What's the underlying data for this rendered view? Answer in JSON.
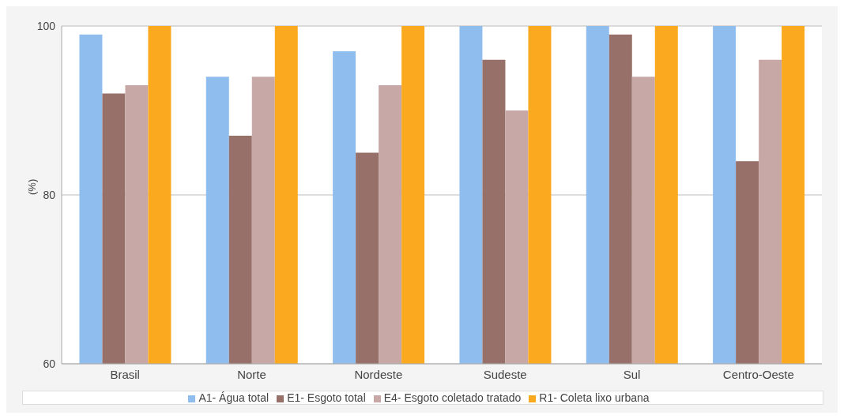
{
  "chart_data": {
    "type": "bar",
    "ylabel": "(%)",
    "categories": [
      "Brasil",
      "Norte",
      "Nordeste",
      "Sudeste",
      "Sul",
      "Centro-Oeste"
    ],
    "series": [
      {
        "name": "A1- Água total",
        "color": "#8fbdee",
        "values": [
          99,
          94,
          97,
          100,
          100,
          100
        ]
      },
      {
        "name": "E1- Esgoto total",
        "color": "#98706a",
        "values": [
          92,
          87,
          85,
          96,
          99,
          84
        ]
      },
      {
        "name": "E4- Esgoto coletado tratado",
        "color": "#c8a8a6",
        "values": [
          93,
          94,
          93,
          90,
          94,
          96
        ]
      },
      {
        "name": "R1- Coleta lixo urbana",
        "color": "#fba91e",
        "values": [
          100,
          100,
          100,
          100,
          100,
          100
        ]
      }
    ],
    "ylim": [
      60,
      100
    ],
    "yticks": [
      60,
      80,
      100
    ],
    "grid": "y",
    "legend": "bottom"
  }
}
